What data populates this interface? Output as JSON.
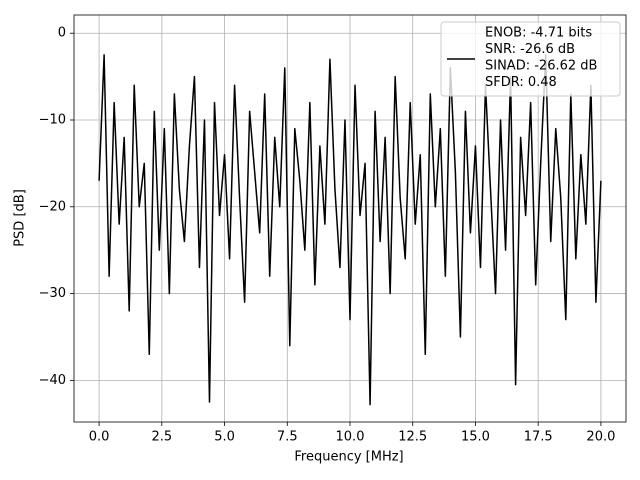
{
  "chart_data": {
    "type": "line",
    "xlabel": "Frequency [MHz]",
    "ylabel": "PSD [dB]",
    "xlim": [
      -1,
      21
    ],
    "ylim": [
      -44.8,
      2.1
    ],
    "xticks": [
      {
        "value": 0,
        "label": "0.0"
      },
      {
        "value": 2.5,
        "label": "2.5"
      },
      {
        "value": 5,
        "label": "5.0"
      },
      {
        "value": 7.5,
        "label": "7.5"
      },
      {
        "value": 10,
        "label": "10.0"
      },
      {
        "value": 12.5,
        "label": "12.5"
      },
      {
        "value": 15,
        "label": "15.0"
      },
      {
        "value": 17.5,
        "label": "17.5"
      },
      {
        "value": 20,
        "label": "20.0"
      }
    ],
    "yticks": [
      {
        "value": 0,
        "label": "0"
      },
      {
        "value": -10,
        "label": "−10"
      },
      {
        "value": -20,
        "label": "−20"
      },
      {
        "value": -30,
        "label": "−30"
      },
      {
        "value": -40,
        "label": "−40"
      }
    ],
    "grid": true,
    "legend": "upper right",
    "x": [
      0,
      0.2,
      0.4,
      0.6,
      0.8,
      1,
      1.2,
      1.4,
      1.6,
      1.8,
      2,
      2.2,
      2.4,
      2.6,
      2.8,
      3,
      3.2,
      3.4,
      3.6,
      3.8,
      4,
      4.2,
      4.4,
      4.6,
      4.8,
      5,
      5.2,
      5.4,
      5.6,
      5.8,
      6,
      6.2,
      6.4,
      6.6,
      6.8,
      7,
      7.2,
      7.4,
      7.6,
      7.8,
      8,
      8.2,
      8.4,
      8.6,
      8.8,
      9,
      9.2,
      9.4,
      9.6,
      9.8,
      10,
      10.2,
      10.4,
      10.6,
      10.8,
      11,
      11.2,
      11.4,
      11.6,
      11.8,
      12,
      12.2,
      12.4,
      12.6,
      12.8,
      13,
      13.2,
      13.4,
      13.6,
      13.8,
      14,
      14.2,
      14.4,
      14.6,
      14.8,
      15,
      15.2,
      15.4,
      15.6,
      15.8,
      16,
      16.2,
      16.4,
      16.6,
      16.8,
      17,
      17.2,
      17.4,
      17.6,
      17.8,
      18,
      18.2,
      18.4,
      18.6,
      18.8,
      19,
      19.2,
      19.4,
      19.6,
      19.8,
      20
    ],
    "series": [
      {
        "name": [
          "ENOB: -4.71 bits",
          "SNR: -26.6 dB",
          "SINAD: -26.62 dB",
          "SFDR: 0.48"
        ],
        "color": "#000000",
        "values": [
          -17,
          -2.5,
          -28,
          -8,
          -22,
          -12,
          -32,
          -6,
          -20,
          -15,
          -37,
          -9,
          -25,
          -11,
          -30,
          -7,
          -18,
          -24,
          -13,
          -5,
          -27,
          -10,
          -42.5,
          -8,
          -21,
          -14,
          -26,
          -6,
          -19,
          -31,
          -9,
          -16,
          -23,
          -7,
          -28,
          -12,
          -20,
          -4,
          -36,
          -11,
          -17,
          -25,
          -8,
          -29,
          -13,
          -22,
          -3,
          -18,
          -27,
          -10,
          -33,
          -6,
          -21,
          -15,
          -42.8,
          -9,
          -24,
          -12,
          -30,
          -5,
          -19,
          -26,
          -8,
          -22,
          -14,
          -37,
          -7,
          -20,
          -11,
          -28,
          -4,
          -16,
          -35,
          -9,
          -23,
          -13,
          -27,
          -6,
          -18,
          -30,
          -10,
          -25,
          -5,
          -40.5,
          -12,
          -21,
          -8,
          -29,
          -15,
          -2.5,
          -24,
          -11,
          -19,
          -33,
          -7,
          -26,
          -14,
          -22,
          -6,
          -31,
          -17
        ]
      }
    ]
  }
}
